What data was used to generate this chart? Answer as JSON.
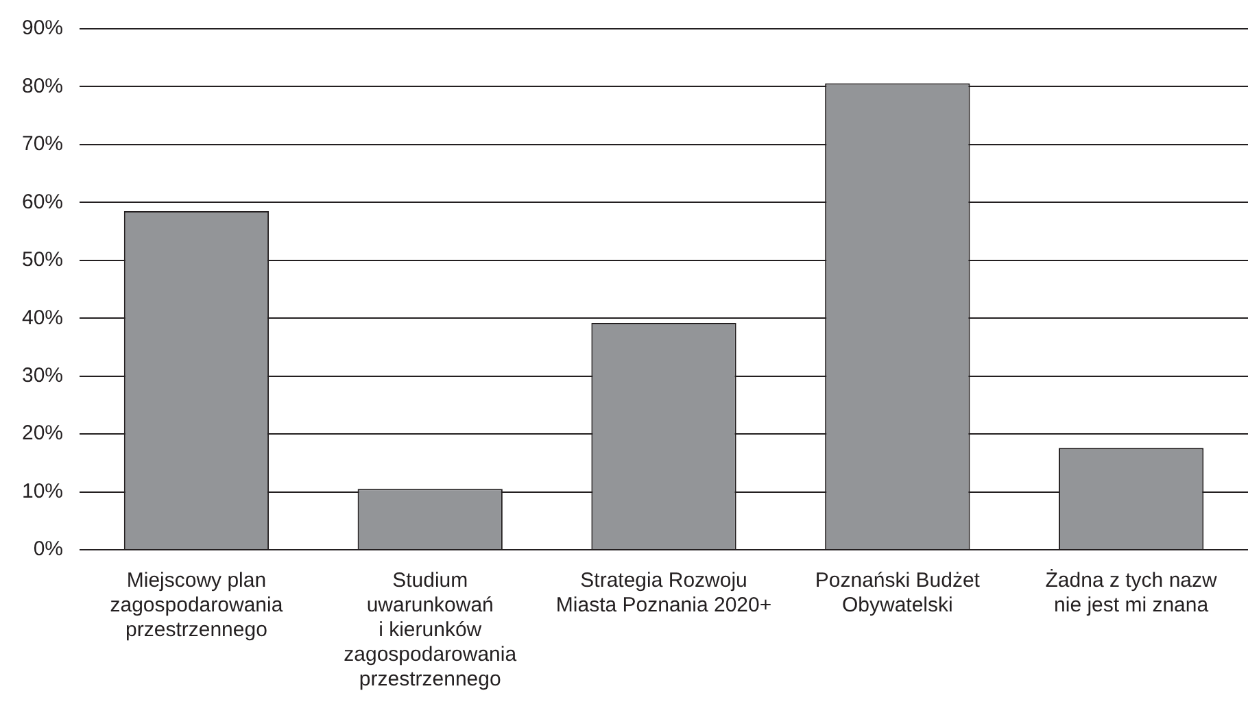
{
  "chart_data": {
    "type": "bar",
    "categories": [
      "Miejscowy plan\nzagospodarowania\nprzestrzennego",
      "Studium\nuwarunkowań\ni kierunków\nzagospodarowania\nprzestrzennego",
      "Strategia Rozwoju\nMiasta Poznania 2020+",
      "Poznański Budżet\nObywatelski",
      "Żadna z tych nazw\nnie jest mi znana"
    ],
    "values": [
      58.5,
      10.5,
      39.2,
      80.6,
      17.6
    ],
    "color": "#939598",
    "ylim": [
      0,
      90
    ],
    "yticks": [
      {
        "value": 0,
        "label": "0%"
      },
      {
        "value": 10,
        "label": "10%"
      },
      {
        "value": 20,
        "label": "20%"
      },
      {
        "value": 30,
        "label": "30%"
      },
      {
        "value": 40,
        "label": "40%"
      },
      {
        "value": 50,
        "label": "50%"
      },
      {
        "value": 60,
        "label": "60%"
      },
      {
        "value": 70,
        "label": "70%"
      },
      {
        "value": 80,
        "label": "80%"
      },
      {
        "value": 90,
        "label": "90%"
      }
    ],
    "grid": "y",
    "legend": false
  }
}
